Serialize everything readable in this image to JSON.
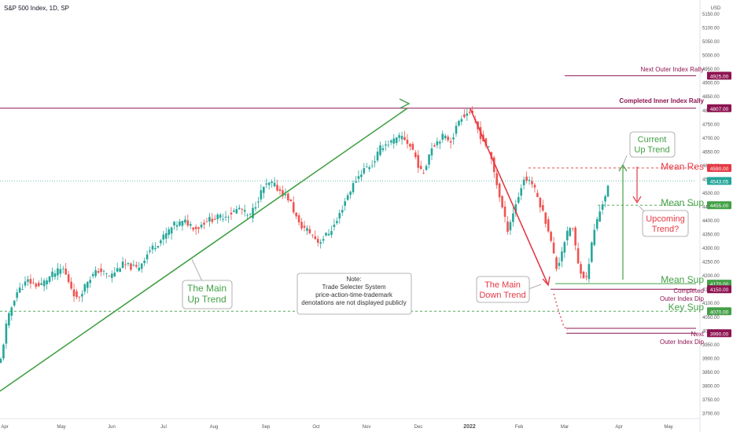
{
  "header": {
    "title": "S&P 500 Index, 1D, SP"
  },
  "colors": {
    "up": "#26a69a",
    "down": "#ef5350",
    "green_line": "#43a047",
    "red_line": "#e53945",
    "maroon": "#8e1451",
    "grid_text": "#555555"
  },
  "chart_data": {
    "type": "candlestick",
    "title": "S&P 500 Index, 1D, SP",
    "y_axis": {
      "unit": "USD",
      "ylim": [
        3650,
        5200
      ],
      "ticks": [
        5150,
        5100,
        5050,
        5000,
        4950,
        4900,
        4850,
        4800,
        4750,
        4700,
        4650,
        4600,
        4550,
        4500,
        4450,
        4400,
        4350,
        4300,
        4250,
        4200,
        4150,
        4100,
        4050,
        4000,
        3950,
        3900,
        3850,
        3800,
        3750,
        3700
      ]
    },
    "x_axis": {
      "labels": [
        "Apr",
        "May",
        "Jun",
        "Jul",
        "Aug",
        "Sep",
        "Oct",
        "Nov",
        "Dec",
        "2022",
        "Feb",
        "Mar",
        "Apr",
        "May"
      ]
    },
    "price_path": [
      [
        0,
        3875
      ],
      [
        8,
        4020
      ],
      [
        20,
        4135
      ],
      [
        35,
        4180
      ],
      [
        50,
        4160
      ],
      [
        65,
        4200
      ],
      [
        80,
        4225
      ],
      [
        98,
        4110
      ],
      [
        112,
        4185
      ],
      [
        126,
        4220
      ],
      [
        140,
        4195
      ],
      [
        155,
        4240
      ],
      [
        175,
        4225
      ],
      [
        190,
        4290
      ],
      [
        205,
        4330
      ],
      [
        222,
        4385
      ],
      [
        236,
        4395
      ],
      [
        250,
        4370
      ],
      [
        262,
        4400
      ],
      [
        277,
        4410
      ],
      [
        290,
        4420
      ],
      [
        305,
        4445
      ],
      [
        317,
        4410
      ],
      [
        335,
        4520
      ],
      [
        345,
        4535
      ],
      [
        355,
        4510
      ],
      [
        368,
        4475
      ],
      [
        380,
        4385
      ],
      [
        393,
        4360
      ],
      [
        405,
        4320
      ],
      [
        418,
        4355
      ],
      [
        428,
        4395
      ],
      [
        440,
        4480
      ],
      [
        452,
        4545
      ],
      [
        462,
        4585
      ],
      [
        474,
        4605
      ],
      [
        485,
        4670
      ],
      [
        498,
        4685
      ],
      [
        512,
        4705
      ],
      [
        525,
        4655
      ],
      [
        537,
        4560
      ],
      [
        548,
        4665
      ],
      [
        562,
        4705
      ],
      [
        574,
        4690
      ],
      [
        585,
        4775
      ],
      [
        598,
        4796
      ],
      [
        612,
        4700
      ],
      [
        622,
        4655
      ],
      [
        633,
        4515
      ],
      [
        645,
        4365
      ],
      [
        655,
        4450
      ],
      [
        666,
        4550
      ],
      [
        675,
        4545
      ],
      [
        686,
        4465
      ],
      [
        697,
        4370
      ],
      [
        708,
        4220
      ],
      [
        717,
        4320
      ],
      [
        727,
        4390
      ],
      [
        735,
        4240
      ],
      [
        745,
        4180
      ],
      [
        755,
        4360
      ],
      [
        765,
        4455
      ],
      [
        773,
        4520
      ]
    ],
    "candles": {
      "count": 225,
      "bodies_follow": "price_path",
      "up_color": "up",
      "down_color": "down"
    },
    "levels": [
      {
        "name": "Next Outer Index Rally",
        "value": 4925,
        "tag": "4925.00",
        "color": "maroon"
      },
      {
        "name": "Completed Inner Index Rally",
        "value": 4807,
        "tag": "4807.00",
        "color": "maroon"
      },
      {
        "name": "Mean Res",
        "value": 4590,
        "tag": "4590.00",
        "color": "red"
      },
      {
        "name": "Last price",
        "value": 4543.05,
        "tag": "4543.05",
        "color": "up"
      },
      {
        "name": "Mean Sup",
        "value": 4455,
        "tag": "4455.00",
        "color": "green"
      },
      {
        "name": "Mean Sup",
        "value": 4170,
        "tag": "4170.00",
        "color": "green"
      },
      {
        "name": "Completed Outer Index Dip",
        "value": 4150,
        "tag": "4150.00",
        "color": "maroon"
      },
      {
        "name": "Key Sup",
        "value": 4070,
        "tag": "4070.00",
        "color": "green"
      },
      {
        "name": "Next Outer Index Dip",
        "value": 3990,
        "tag": "3990.00",
        "color": "maroon"
      }
    ],
    "trend_lines": [
      {
        "name": "The Main Up Trend",
        "color": "green",
        "from": {
          "bar": 0,
          "price": 3780
        },
        "to": {
          "bar": 518,
          "price": 4807
        }
      },
      {
        "name": "The Main Down Trend",
        "color": "red",
        "from": {
          "bar": 598,
          "price": 4805
        },
        "to": {
          "bar": 697,
          "price": 4165
        }
      }
    ],
    "annotations": {
      "main_up_trend": "The Main\nUp Trend",
      "main_down_trend": "The Main\nDown Trend",
      "current_up_trend": "Current\nUp Trend",
      "upcoming_trend": "Upcoming\nTrend?",
      "note": "Note:\nTrade Selecter System\nprice-action-time-trademark\ndenotations are not displayed publicly",
      "next_outer_rally": "Next Outer Index Rally",
      "completed_inner_rally": "Completed Inner Index Rally",
      "mean_res": "Mean Res",
      "mean_sup_upper": "Mean Sup",
      "mean_sup_lower": "Mean Sup",
      "key_sup": "Key Sup",
      "completed_outer_dip": "Completed\nOuter Index Dip",
      "next_outer_dip": "Next\nOuter Index Dip"
    }
  }
}
